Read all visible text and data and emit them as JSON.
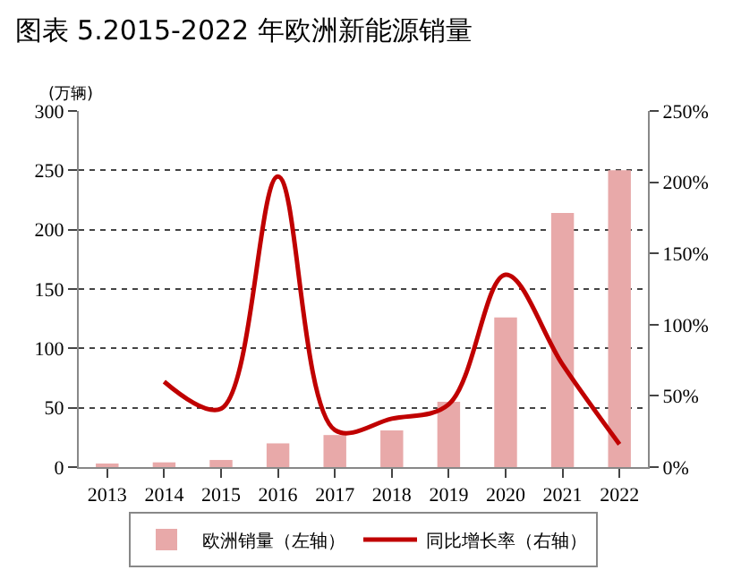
{
  "chart_data": {
    "type": "bar",
    "title": "图表 5.2015-2022 年欧洲新能源销量",
    "ylabel": "(万辆)",
    "categories": [
      "2013",
      "2014",
      "2015",
      "2016",
      "2017",
      "2018",
      "2019",
      "2020",
      "2021",
      "2022"
    ],
    "series": [
      {
        "name": "欧洲销量（左轴）",
        "color": "#e8a9a9",
        "values": [
          2,
          4,
          6,
          20,
          27,
          31,
          55,
          126,
          214,
          250
        ]
      },
      {
        "name": "同比增长率（右轴）",
        "type": "line",
        "axis": "y2",
        "color": "#c00000",
        "values": [
          null,
          60,
          41,
          204,
          26,
          34,
          44,
          135,
          72,
          16
        ]
      }
    ],
    "ylim": [
      0,
      300
    ],
    "yticks": [
      0,
      50,
      100,
      150,
      200,
      250,
      300
    ],
    "y2lim": [
      0,
      250
    ],
    "y2ticks": [
      {
        "value": 0,
        "label": "0%"
      },
      {
        "value": 50,
        "label": "50%"
      },
      {
        "value": 100,
        "label": "100%"
      },
      {
        "value": 150,
        "label": "150%"
      },
      {
        "value": 200,
        "label": "200%"
      },
      {
        "value": 250,
        "label": "250%"
      }
    ],
    "grid": "y",
    "legend": "bottom",
    "marker": "none",
    "line_style": "solid"
  }
}
